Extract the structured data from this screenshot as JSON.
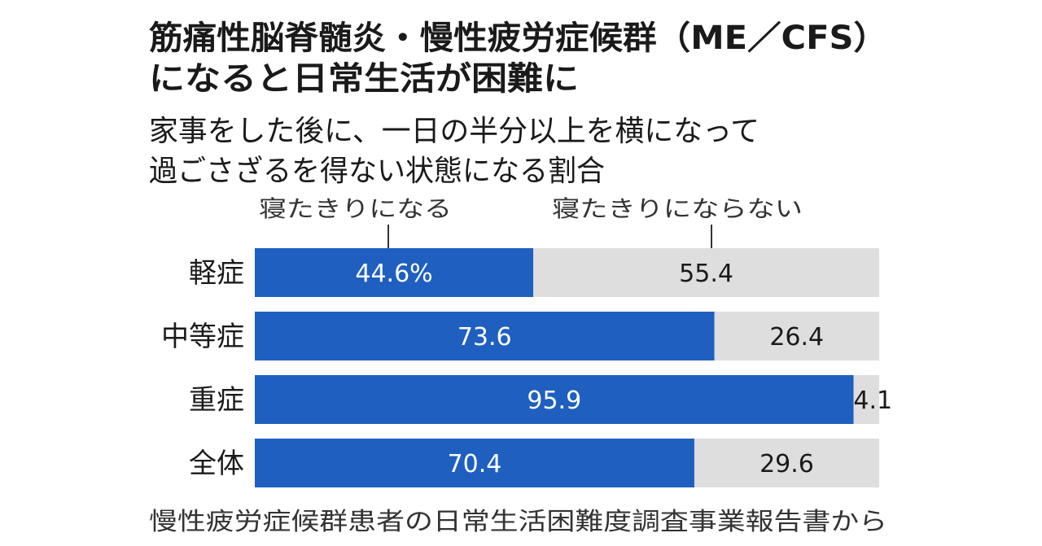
{
  "chart_data": {
    "type": "bar",
    "orientation": "horizontal",
    "stacked": true,
    "title": [
      "筋痛性脳脊髄炎・慢性疲労症候群（ME／CFS）",
      "になると日常生活が困難に"
    ],
    "subtitle": [
      "家事をした後に、一日の半分以上を横になって",
      "過ごさざるを得ない状態になる割合"
    ],
    "categories": [
      "軽症",
      "中等症",
      "重症",
      "全体"
    ],
    "series": [
      {
        "name": "寝たきりになる",
        "values": [
          44.6,
          73.6,
          95.9,
          70.4
        ],
        "labels": [
          "44.6%",
          "73.6",
          "95.9",
          "70.4"
        ],
        "color": "#1f5fc0"
      },
      {
        "name": "寝たきりにならない",
        "values": [
          55.4,
          26.4,
          4.1,
          29.6
        ],
        "labels": [
          "55.4",
          "26.4",
          "4.1",
          "29.6"
        ],
        "color": "#dedede"
      }
    ],
    "xlim": [
      0,
      100
    ],
    "unit": "%",
    "grid": false,
    "legend": "top",
    "source": "慢性疲労症候群患者の日常生活困難度調査事業報告書から"
  }
}
